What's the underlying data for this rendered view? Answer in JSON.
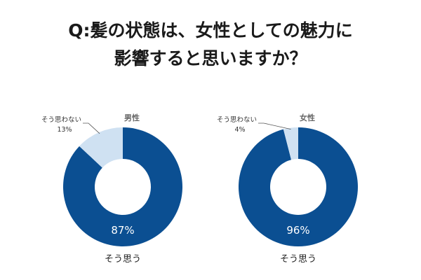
{
  "title": {
    "line1": "Q:髪の状態は、女性としての魅力に",
    "line2": "影響すると思いますか？"
  },
  "colors": {
    "yes": "#0b4f92",
    "no": "#cfe1f2"
  },
  "chart_data": [
    {
      "type": "pie",
      "title": "男性",
      "categories": [
        "そう思う",
        "そう思わない"
      ],
      "values": [
        87,
        13
      ],
      "value_labels": [
        "87%",
        "13%"
      ]
    },
    {
      "type": "pie",
      "title": "女性",
      "categories": [
        "そう思う",
        "そう思わない"
      ],
      "values": [
        96,
        4
      ],
      "value_labels": [
        "96%",
        "4%"
      ]
    }
  ]
}
